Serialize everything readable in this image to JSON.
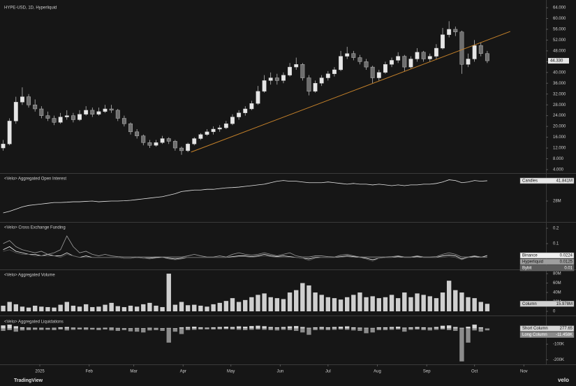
{
  "chart_data": [
    {
      "type": "candlestick",
      "title": "HYPE-USD, 1D, Hyperliquid",
      "xlim": [
        -0.5,
        85
      ],
      "ylim": [
        2.96,
        65.56
      ],
      "up_color": "#e6e6e6",
      "down_color": "#6e6e6e",
      "last_label": "44.330",
      "yticks": [
        {
          "value": 4,
          "label": "4.000"
        },
        {
          "value": 8,
          "label": "8.000"
        },
        {
          "value": 12,
          "label": "12.000"
        },
        {
          "value": 16,
          "label": "16.000"
        },
        {
          "value": 20,
          "label": "20.000"
        },
        {
          "value": 24,
          "label": "24.000"
        },
        {
          "value": 28,
          "label": "28.000"
        },
        {
          "value": 32,
          "label": "32.000"
        },
        {
          "value": 36,
          "label": "36.000"
        },
        {
          "value": 40,
          "label": "40.000"
        },
        {
          "value": 44,
          "label": "44.000"
        },
        {
          "value": 48,
          "label": "48.000"
        },
        {
          "value": 52,
          "label": "52.000"
        },
        {
          "value": 56,
          "label": "56.000"
        },
        {
          "value": 60,
          "label": "60.000"
        },
        {
          "value": 64,
          "label": "64.000"
        }
      ],
      "trendline": {
        "x": [
          29.5,
          79.6
        ],
        "y": [
          10.5,
          55.2
        ],
        "color": "#c8832a"
      },
      "open": [
        12,
        13.5,
        22,
        29,
        31,
        28,
        26.5,
        24,
        23,
        21.5,
        23.5,
        24,
        22.5,
        24.5,
        26,
        24.5,
        25.5,
        26.5,
        26,
        23,
        21,
        18,
        16.5,
        14,
        13,
        14,
        15.5,
        14.5,
        12,
        11,
        13.5,
        15.5,
        17,
        18,
        19,
        19.5,
        21,
        23.5,
        25,
        26.5,
        28.5,
        33,
        37,
        38,
        37,
        39,
        42,
        43,
        38,
        33,
        36,
        38,
        39.5,
        41,
        46,
        47,
        45.5,
        44,
        42,
        38,
        40,
        43,
        44.5,
        46,
        42,
        45,
        47.5,
        45,
        46,
        49,
        54,
        56,
        55,
        43,
        45,
        50,
        47
      ],
      "high": [
        15,
        23,
        31,
        34.5,
        32,
        30,
        27.5,
        25.5,
        24,
        25,
        26,
        25,
        26,
        27.5,
        27,
        27,
        28,
        28,
        26.5,
        24,
        21.5,
        19,
        17,
        15,
        15,
        16.5,
        16,
        15,
        12.5,
        14,
        16,
        17.5,
        19,
        20,
        20.5,
        22,
        24.5,
        26,
        27.5,
        29.5,
        35,
        39,
        40,
        39.5,
        40,
        43.5,
        45.5,
        43.5,
        39,
        37,
        39,
        40.5,
        42,
        48,
        49.5,
        48,
        46.5,
        45,
        42.5,
        41,
        44,
        45.5,
        47.5,
        46.5,
        46,
        49,
        48,
        47,
        50.5,
        56.5,
        59,
        57,
        55.5,
        47,
        52,
        51,
        48
      ],
      "low": [
        11,
        13,
        21,
        28,
        27,
        25.5,
        23,
        22,
        20.5,
        21,
        22.5,
        21.5,
        22,
        24,
        23.5,
        24,
        25,
        25,
        22,
        20,
        17,
        15.5,
        13,
        12,
        12.5,
        13.5,
        13.5,
        11,
        9.5,
        10.5,
        13,
        15,
        16.5,
        17,
        18,
        19,
        20.5,
        22.5,
        24,
        26,
        28,
        32.5,
        35.5,
        35.5,
        36,
        38.5,
        41,
        37,
        31.5,
        32.5,
        35,
        37,
        38.5,
        40.5,
        45,
        44.5,
        43,
        41,
        36,
        37,
        39.5,
        42,
        43.5,
        40.5,
        41.5,
        44,
        44,
        44,
        45,
        48.5,
        53,
        53.5,
        39.5,
        42,
        44,
        46,
        43.5
      ],
      "close": [
        13.5,
        22,
        29,
        31,
        28,
        26.5,
        24,
        23,
        21.5,
        23.5,
        24,
        22.5,
        24.5,
        26,
        24.5,
        25.5,
        26.5,
        26,
        23,
        21,
        18,
        16.5,
        14,
        13,
        14,
        15.5,
        14.5,
        12,
        11,
        13.5,
        15.5,
        17,
        18,
        19,
        19.5,
        21,
        23.5,
        25,
        26.5,
        28.5,
        33,
        37,
        38,
        37,
        39,
        42,
        43,
        38,
        33,
        36,
        38,
        39.5,
        41,
        46,
        47,
        45.5,
        44,
        42,
        38,
        40,
        43,
        44.5,
        46,
        42,
        45,
        47.5,
        45,
        46,
        49,
        54,
        56,
        55,
        43,
        45,
        50,
        47,
        44.33
      ]
    },
    {
      "type": "line",
      "title": "<Velo> Aggregated Open Interest",
      "xlim": [
        -0.5,
        85
      ],
      "ylim": [
        14200000,
        46100000
      ],
      "yticks": [
        {
          "value": 28000000,
          "label": "28M"
        }
      ],
      "series": [
        {
          "name": "Candles",
          "color": "#e6e6e6",
          "last_label": "41.841M",
          "values": [
            19900000,
            21000000,
            22500000,
            24000000,
            25000000,
            25500000,
            26000000,
            26500000,
            27000000,
            27000000,
            27200000,
            27500000,
            27500000,
            27800000,
            28000000,
            27500000,
            27800000,
            28000000,
            28000000,
            28200000,
            28500000,
            29000000,
            29500000,
            30000000,
            30500000,
            31000000,
            32000000,
            33000000,
            34500000,
            35000000,
            35500000,
            35500000,
            36000000,
            36000000,
            36500000,
            37000000,
            37200000,
            37500000,
            38000000,
            38500000,
            39000000,
            39500000,
            40500000,
            41500000,
            42000000,
            41500000,
            41500000,
            41000000,
            40500000,
            40500000,
            40500000,
            41000000,
            40500000,
            40000000,
            39500000,
            40000000,
            39500000,
            39500000,
            39000000,
            39500000,
            39000000,
            38500000,
            39000000,
            38500000,
            39000000,
            39000000,
            39500000,
            39500000,
            40000000,
            41000000,
            42500000,
            42000000,
            40500000,
            41000000,
            42000000,
            41500000,
            41841000
          ]
        }
      ]
    },
    {
      "type": "line",
      "title": "<Velo> Cross Exchange Funding",
      "xlim": [
        -0.5,
        85
      ],
      "ylim": [
        -0.064,
        0.232
      ],
      "yticks": [
        0.1,
        0.2
      ],
      "series": [
        {
          "name": "Binance",
          "color": "#f0f0f0",
          "last_label": "0.0224",
          "values": [
            0.06,
            0.08,
            0.05,
            0.04,
            0.03,
            0.03,
            0.02,
            0.03,
            0.02,
            0.02,
            0.04,
            0.02,
            0.01,
            0.02,
            0.01,
            0.01,
            0.01,
            0.01,
            0.01,
            0.005,
            0.005,
            0.01,
            0.005,
            0.005,
            0.01,
            0.01,
            0.005,
            0,
            0.005,
            0.01,
            0.01,
            0.01,
            0.01,
            0.01,
            0.01,
            0.01,
            0.015,
            0.02,
            0.02,
            0.015,
            0.02,
            0.03,
            0.02,
            0.015,
            0.02,
            0.015,
            0.01,
            0.005,
            0,
            0.01,
            0.01,
            0.01,
            0.01,
            0.015,
            0.02,
            0.015,
            0.01,
            0.005,
            -0.005,
            0.005,
            0.01,
            0.01,
            0.015,
            0.01,
            0.01,
            0.015,
            0.01,
            0.01,
            0.01,
            0.02,
            0.025,
            0.02,
            0,
            0.01,
            0.015,
            0.01,
            0.0224
          ]
        },
        {
          "name": "Hyperliquid",
          "color": "#9e9e9e",
          "last_label": "0.0125",
          "values": [
            0.1,
            0.12,
            0.08,
            0.06,
            0.05,
            0.04,
            0.05,
            0.03,
            0.04,
            0.06,
            0.15,
            0.08,
            0.04,
            0.05,
            0.03,
            0.02,
            0.03,
            0.02,
            0.015,
            0.0125,
            0.0125,
            0.0125,
            0.0125,
            0.0125,
            0.0125,
            0.0125,
            0.0125,
            0.0125,
            0.0125,
            0.02,
            0.03,
            0.02,
            0.0125,
            0.0125,
            0.02,
            0.0125,
            0.03,
            0.04,
            0.03,
            0.025,
            0.03,
            0.04,
            0.03,
            0.02,
            0.03,
            0.04,
            0.02,
            0.0125,
            0.0125,
            0.02,
            0.02,
            0.015,
            0.0125,
            0.025,
            0.03,
            0.02,
            0.0125,
            0.0125,
            0.0125,
            0.0125,
            0.0125,
            0.015,
            0.02,
            0.0125,
            0.0125,
            0.02,
            0.0125,
            0.0125,
            0.015,
            0.03,
            0.04,
            0.03,
            0.0125,
            0.0125,
            0.02,
            0.0125,
            0.0125
          ]
        },
        {
          "name": "Bybit",
          "color": "#5c5c5c",
          "last_label": "0.01",
          "values": [
            0.05,
            0.06,
            0.04,
            0.03,
            0.03,
            0.02,
            0.02,
            0.02,
            0.02,
            0.01,
            0.03,
            0.02,
            0.01,
            0.01,
            0.01,
            0.01,
            0.01,
            0.01,
            0.01,
            0.005,
            0.005,
            0.01,
            0.005,
            0,
            0.005,
            0.01,
            0,
            -0.005,
            0,
            0.01,
            0.01,
            0.01,
            0.01,
            0.01,
            0.01,
            0.01,
            0.01,
            0.015,
            0.015,
            0.01,
            0.015,
            0.02,
            0.015,
            0.01,
            0.01,
            0.01,
            0.01,
            0.005,
            -0.01,
            0.005,
            0.01,
            0.01,
            0.01,
            0.01,
            0.015,
            0.01,
            0.01,
            0,
            -0.015,
            0.005,
            0.01,
            0.01,
            0.01,
            0.01,
            0.01,
            0.01,
            0.01,
            0.01,
            0.01,
            0.01,
            0.015,
            0.01,
            -0.005,
            0.01,
            0.01,
            0.01,
            0.01
          ]
        }
      ]
    },
    {
      "type": "bar",
      "title": "<Velo> Aggregated Volume",
      "xlim": [
        -0.5,
        85
      ],
      "ylim": [
        -4400000,
        86000000
      ],
      "yticks": [
        0,
        {
          "value": 20000000,
          "label": "20M"
        },
        {
          "value": 40000000,
          "label": "40M"
        },
        {
          "value": 60000000,
          "label": "60M"
        },
        {
          "value": 80000000,
          "label": "80M"
        }
      ],
      "series": [
        {
          "name": "Column",
          "color": "#cfcfcf",
          "last_label": "15.978M",
          "values": [
            12000000,
            20000000,
            15000000,
            10000000,
            8000000,
            12000000,
            10000000,
            9000000,
            8000000,
            14000000,
            20000000,
            12000000,
            10000000,
            15000000,
            9000000,
            10000000,
            14000000,
            18000000,
            11000000,
            9000000,
            12000000,
            10000000,
            15000000,
            18000000,
            12000000,
            9000000,
            80000000,
            14000000,
            20000000,
            13000000,
            14000000,
            12000000,
            10000000,
            15000000,
            18000000,
            22000000,
            28000000,
            20000000,
            24000000,
            30000000,
            35000000,
            38000000,
            30000000,
            28000000,
            26000000,
            40000000,
            45000000,
            60000000,
            55000000,
            40000000,
            35000000,
            30000000,
            28000000,
            25000000,
            30000000,
            35000000,
            40000000,
            30000000,
            32000000,
            28000000,
            30000000,
            35000000,
            28000000,
            40000000,
            30000000,
            38000000,
            35000000,
            32000000,
            28000000,
            40000000,
            65000000,
            45000000,
            40000000,
            30000000,
            28000000,
            20000000,
            15978000
          ]
        }
      ]
    },
    {
      "type": "bar",
      "title": "<Velo> Aggregated Liquidations",
      "xlim": [
        -0.5,
        85
      ],
      "ylim": [
        -220000,
        70000
      ],
      "yticks": [
        {
          "value": -100000,
          "label": "-100K"
        },
        {
          "value": -200000,
          "label": "-200K"
        }
      ],
      "xticks": [
        {
          "value": 5.75,
          "label": "2025"
        },
        {
          "value": 13.5,
          "label": "Feb"
        },
        {
          "value": 20.5,
          "label": "Mar"
        },
        {
          "value": 28.25,
          "label": "Apr"
        },
        {
          "value": 35.75,
          "label": "May"
        },
        {
          "value": 43.5,
          "label": "Jun"
        },
        {
          "value": 51,
          "label": "Jul"
        },
        {
          "value": 58.75,
          "label": "Aug"
        },
        {
          "value": 66.5,
          "label": "Sep"
        },
        {
          "value": 74,
          "label": "Oct"
        },
        {
          "value": 81.75,
          "label": "Nov"
        }
      ],
      "series": [
        {
          "name": "Short Column",
          "color": "#d6d6d6",
          "last_label": "277.65",
          "values": [
            20000,
            25000,
            15000,
            8000,
            6000,
            5000,
            5000,
            4000,
            5000,
            8000,
            10000,
            6000,
            5000,
            6000,
            4000,
            4000,
            5000,
            6000,
            4000,
            3000,
            3000,
            4000,
            3000,
            5000,
            4000,
            3000,
            4000,
            3000,
            8000,
            10000,
            12000,
            8000,
            6000,
            8000,
            10000,
            12000,
            10000,
            14000,
            12000,
            16000,
            18000,
            15000,
            10000,
            8000,
            10000,
            14000,
            16000,
            10000,
            5000,
            8000,
            10000,
            8000,
            10000,
            12000,
            14000,
            8000,
            6000,
            5000,
            4000,
            8000,
            8000,
            10000,
            12000,
            6000,
            8000,
            10000,
            8000,
            6000,
            10000,
            18000,
            20000,
            10000,
            5000,
            12000,
            25000,
            8000,
            277.65
          ]
        },
        {
          "name": "Long Column",
          "color": "#8c8c8c",
          "last_label": "-11.458K",
          "values": [
            -15000,
            -10000,
            -20000,
            -12000,
            -10000,
            -8000,
            -9000,
            -8000,
            -10000,
            -6000,
            -12000,
            -8000,
            -6000,
            -8000,
            -7000,
            -10000,
            -6000,
            -12000,
            -15000,
            -10000,
            -18000,
            -20000,
            -25000,
            -12000,
            -10000,
            -15000,
            -90000,
            -20000,
            -35000,
            -10000,
            -8000,
            -6000,
            -5000,
            -6000,
            -5000,
            -4000,
            -6000,
            -8000,
            -10000,
            -8000,
            -6000,
            -8000,
            -10000,
            -12000,
            -8000,
            -10000,
            -15000,
            -25000,
            -40000,
            -10000,
            -8000,
            -10000,
            -8000,
            -6000,
            -8000,
            -12000,
            -15000,
            -30000,
            -25000,
            -10000,
            -10000,
            -8000,
            -6000,
            -20000,
            -8000,
            -6000,
            -10000,
            -12000,
            -8000,
            -6000,
            -10000,
            -15000,
            -210000,
            -90000,
            -12000,
            -20000,
            -11458
          ]
        }
      ]
    }
  ],
  "footer": {
    "left": "TradingView",
    "right": "velo"
  }
}
